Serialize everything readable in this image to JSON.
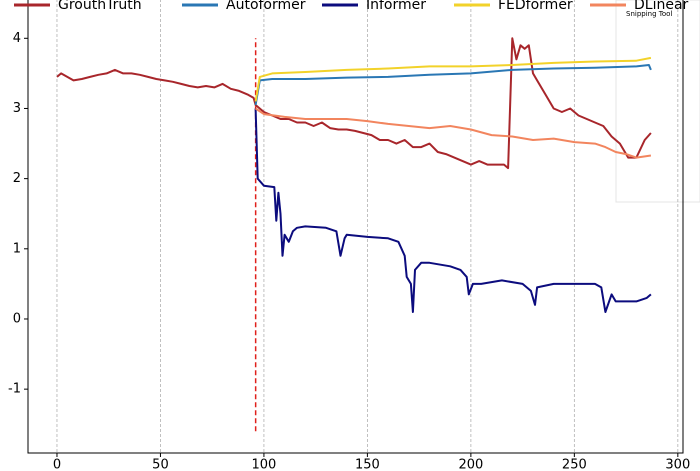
{
  "chart_data": {
    "type": "line",
    "xlim": [
      -14,
      302.5
    ],
    "ylim": [
      -1.91,
      4.56
    ],
    "xticks": [
      0,
      50,
      100,
      150,
      200,
      250,
      300
    ],
    "yticks": [
      -1,
      0,
      1,
      2,
      3,
      4
    ],
    "grid": "x",
    "overlay_text": "Snipping Tool",
    "vline": {
      "x": 96,
      "ymin": -1.6,
      "ymax": 4.0,
      "color": "#e0201b"
    },
    "series": [
      {
        "name": "GrouthTruth",
        "color": "#a8262b",
        "x": [
          0,
          2,
          5,
          8,
          12,
          16,
          20,
          24,
          28,
          32,
          36,
          40,
          44,
          48,
          52,
          56,
          60,
          64,
          68,
          72,
          76,
          80,
          84,
          88,
          92,
          95,
          96,
          100,
          104,
          108,
          112,
          116,
          120,
          124,
          128,
          132,
          136,
          140,
          144,
          148,
          152,
          156,
          160,
          164,
          168,
          172,
          176,
          180,
          184,
          188,
          192,
          196,
          200,
          204,
          208,
          212,
          216,
          218,
          220,
          222,
          224,
          226,
          228,
          230,
          232,
          236,
          240,
          244,
          248,
          252,
          256,
          260,
          264,
          268,
          272,
          276,
          280,
          284,
          287
        ],
        "values": [
          3.45,
          3.5,
          3.45,
          3.4,
          3.42,
          3.45,
          3.48,
          3.5,
          3.55,
          3.5,
          3.5,
          3.48,
          3.45,
          3.42,
          3.4,
          3.38,
          3.35,
          3.32,
          3.3,
          3.32,
          3.3,
          3.35,
          3.28,
          3.25,
          3.2,
          3.15,
          3.05,
          2.95,
          2.9,
          2.85,
          2.85,
          2.8,
          2.8,
          2.75,
          2.8,
          2.72,
          2.7,
          2.7,
          2.68,
          2.65,
          2.62,
          2.55,
          2.55,
          2.5,
          2.55,
          2.45,
          2.45,
          2.5,
          2.38,
          2.35,
          2.3,
          2.25,
          2.2,
          2.25,
          2.2,
          2.2,
          2.2,
          2.15,
          4.0,
          3.7,
          3.9,
          3.85,
          3.9,
          3.5,
          3.4,
          3.2,
          3.0,
          2.95,
          3.0,
          2.9,
          2.85,
          2.8,
          2.75,
          2.6,
          2.5,
          2.3,
          2.3,
          2.55,
          2.65
        ]
      },
      {
        "name": "Autoformer",
        "color": "#2a77b4",
        "x": [
          96,
          98,
          104,
          120,
          140,
          160,
          180,
          200,
          220,
          240,
          260,
          280,
          286,
          287
        ],
        "values": [
          3.05,
          3.4,
          3.42,
          3.42,
          3.44,
          3.45,
          3.48,
          3.5,
          3.55,
          3.57,
          3.58,
          3.6,
          3.62,
          3.55
        ]
      },
      {
        "name": "Informer",
        "color": "#0c0c7e",
        "x": [
          96,
          97,
          100,
          105,
          106,
          107,
          108,
          109,
          110,
          112,
          114,
          116,
          120,
          130,
          135,
          137,
          139,
          140,
          150,
          160,
          165,
          168,
          169,
          171,
          172,
          173,
          176,
          180,
          190,
          195,
          198,
          199,
          201,
          205,
          215,
          225,
          229,
          231,
          232,
          240,
          260,
          263,
          265,
          268,
          270,
          280,
          285,
          287
        ],
        "values": [
          3.0,
          2.0,
          1.9,
          1.88,
          1.4,
          1.8,
          1.5,
          0.9,
          1.2,
          1.1,
          1.25,
          1.3,
          1.32,
          1.3,
          1.25,
          0.9,
          1.15,
          1.2,
          1.17,
          1.15,
          1.1,
          0.9,
          0.6,
          0.5,
          0.1,
          0.7,
          0.8,
          0.8,
          0.75,
          0.7,
          0.6,
          0.35,
          0.5,
          0.5,
          0.55,
          0.5,
          0.4,
          0.2,
          0.45,
          0.5,
          0.5,
          0.45,
          0.1,
          0.35,
          0.25,
          0.25,
          0.3,
          0.35
        ]
      },
      {
        "name": "FEDformer",
        "color": "#f2d22a",
        "x": [
          96,
          98,
          104,
          120,
          140,
          160,
          180,
          200,
          220,
          240,
          260,
          280,
          287
        ],
        "values": [
          3.1,
          3.45,
          3.5,
          3.52,
          3.55,
          3.57,
          3.6,
          3.6,
          3.62,
          3.65,
          3.67,
          3.68,
          3.72
        ]
      },
      {
        "name": "DLinear",
        "color": "#f2855e",
        "x": [
          96,
          100,
          110,
          120,
          140,
          150,
          160,
          170,
          180,
          190,
          200,
          210,
          220,
          230,
          240,
          250,
          260,
          265,
          270,
          275,
          280,
          287
        ],
        "values": [
          3.0,
          2.92,
          2.88,
          2.85,
          2.85,
          2.82,
          2.78,
          2.75,
          2.72,
          2.75,
          2.7,
          2.62,
          2.6,
          2.55,
          2.57,
          2.52,
          2.5,
          2.45,
          2.38,
          2.35,
          2.3,
          2.33
        ]
      }
    ]
  }
}
